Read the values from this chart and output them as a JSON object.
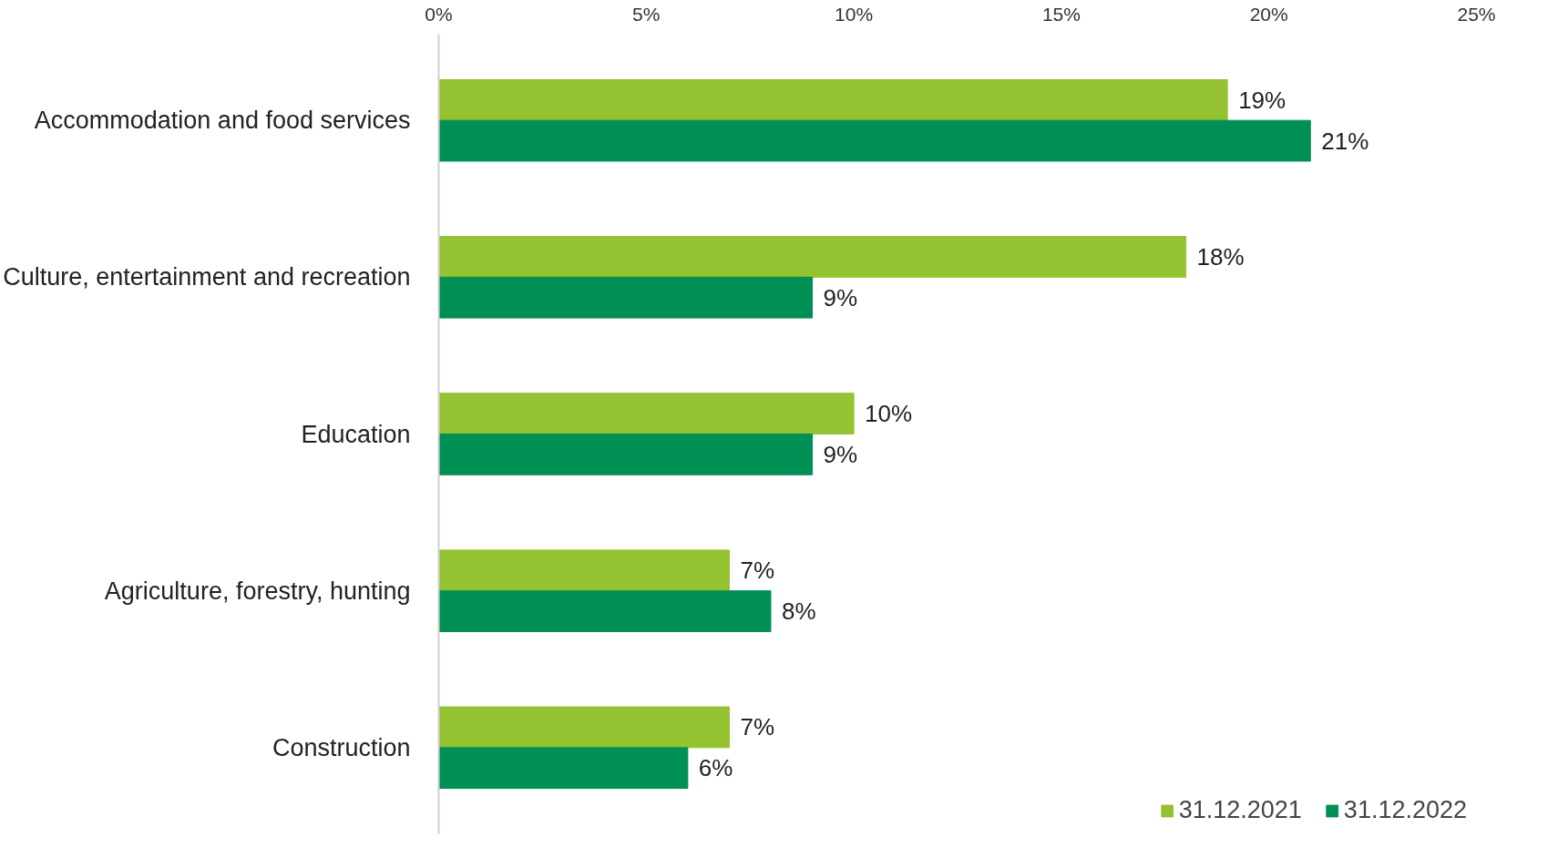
{
  "chart_data": {
    "type": "bar",
    "orientation": "horizontal",
    "categories": [
      "Accommodation and food services",
      "Culture, entertainment and recreation",
      "Education",
      "Agriculture, forestry, hunting",
      "Construction"
    ],
    "series": [
      {
        "name": "31.12.2021",
        "color": "#95c231",
        "values": [
          19,
          18,
          10,
          7,
          7
        ],
        "value_labels": [
          "19%",
          "18%",
          "10%",
          "7%",
          "7%"
        ]
      },
      {
        "name": "31.12.2022",
        "color": "#008f55",
        "values": [
          21,
          9,
          9,
          8,
          6
        ],
        "value_labels": [
          "21%",
          "9%",
          "9%",
          "8%",
          "6%"
        ]
      }
    ],
    "xlim": [
      0,
      25
    ],
    "xticks": [
      {
        "value": 0,
        "label": "0%"
      },
      {
        "value": 5,
        "label": "5%"
      },
      {
        "value": 10,
        "label": "10%"
      },
      {
        "value": 15,
        "label": "15%"
      },
      {
        "value": 20,
        "label": "20%"
      },
      {
        "value": 25,
        "label": "25%"
      }
    ],
    "grid": false,
    "legend": "bottom right"
  }
}
